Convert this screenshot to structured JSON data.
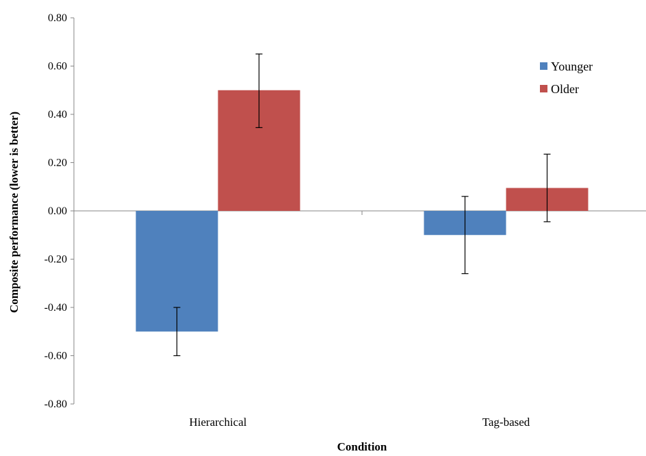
{
  "chart_data": {
    "type": "bar",
    "title": "",
    "xlabel": "Condition",
    "ylabel": "Composite performance (lower is better)",
    "categories": [
      "Hierarchical",
      "Tag-based"
    ],
    "series": [
      {
        "name": "Younger",
        "color": "#4F81BD",
        "values": [
          -0.5,
          -0.1
        ],
        "error_low": [
          -0.6,
          -0.26
        ],
        "error_high": [
          -0.4,
          0.06
        ]
      },
      {
        "name": "Older",
        "color": "#C0504D",
        "values": [
          0.5,
          0.095
        ],
        "error_low": [
          0.345,
          -0.045
        ],
        "error_high": [
          0.65,
          0.235
        ]
      }
    ],
    "ylim": [
      -0.8,
      0.8
    ],
    "yticks": [
      0.8,
      0.6,
      0.4,
      0.2,
      0.0,
      -0.2,
      -0.4,
      -0.6,
      -0.8
    ],
    "ytick_labels": [
      "0.80",
      "0.60",
      "0.40",
      "0.20",
      "0.00",
      "-0.20",
      "-0.40",
      "-0.60",
      "-0.80"
    ],
    "grid": false,
    "legend_position": "top-right"
  }
}
